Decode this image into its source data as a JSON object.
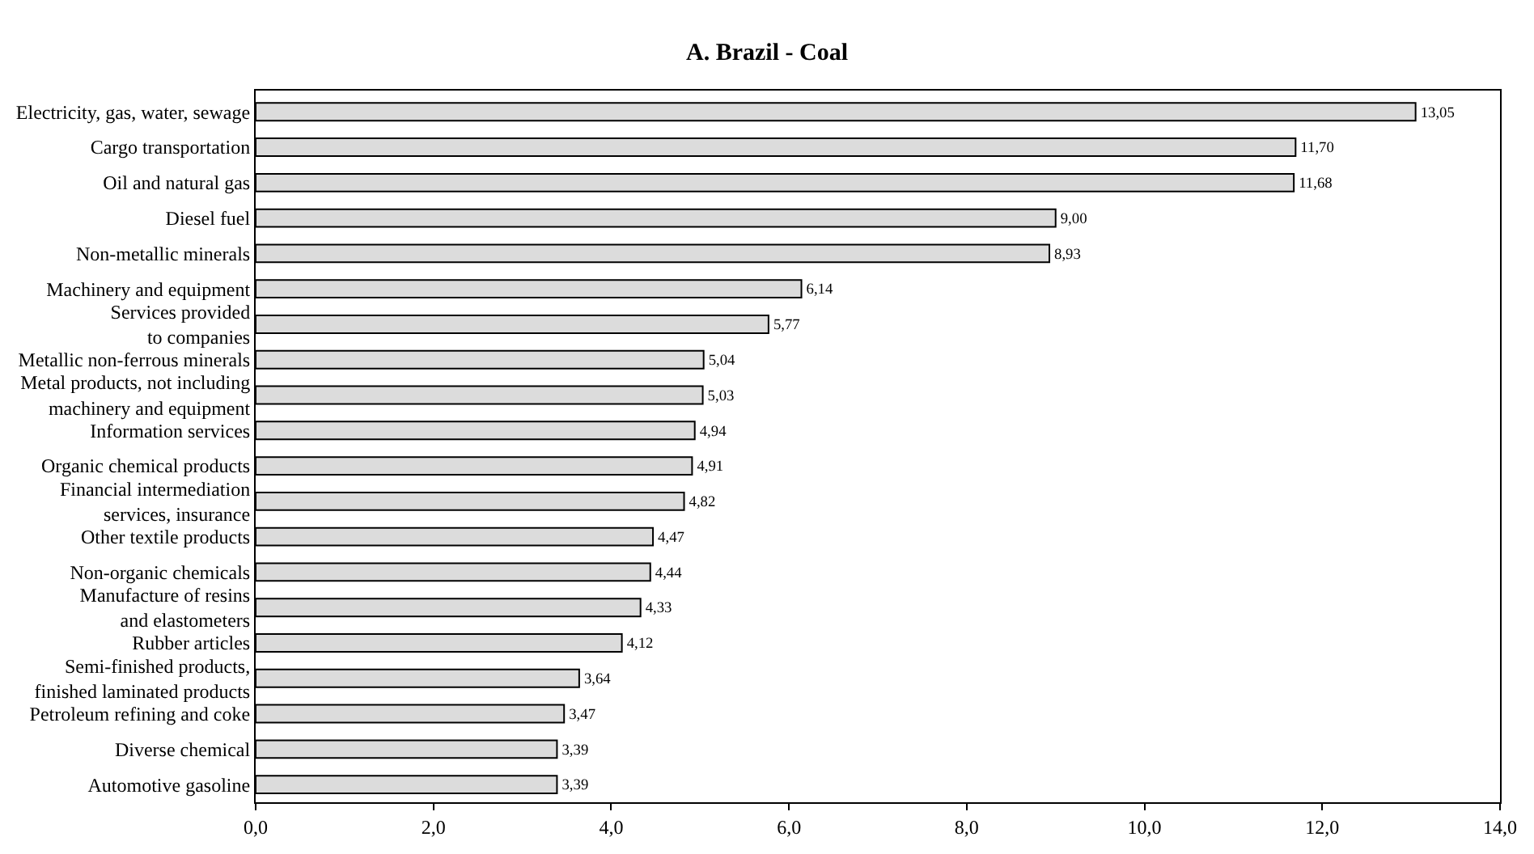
{
  "chart_data": {
    "type": "bar",
    "orientation": "horizontal",
    "title": "A. Brazil - Coal",
    "categories": [
      "Electricity, gas, water, sewage",
      "Cargo transportation",
      "Oil and natural gas",
      "Diesel fuel",
      "Non-metallic minerals",
      "Machinery and equipment",
      "Services provided\nto companies",
      "Metallic non-ferrous minerals",
      "Metal products, not including\nmachinery and equipment",
      "Information services",
      "Organic chemical products",
      "Financial intermediation\nservices, insurance",
      "Other textile products",
      "Non-organic chemicals",
      "Manufacture of resins\nand elastometers",
      "Rubber articles",
      "Semi-finished products,\nfinished laminated products",
      "Petroleum refining and coke",
      "Diverse chemical",
      "Automotive gasoline"
    ],
    "values": [
      13.05,
      11.7,
      11.68,
      9.0,
      8.93,
      6.14,
      5.77,
      5.04,
      5.03,
      4.94,
      4.91,
      4.82,
      4.47,
      4.44,
      4.33,
      4.12,
      3.64,
      3.47,
      3.39,
      3.39
    ],
    "value_labels": [
      "13,05",
      "11,70",
      "11,68",
      "9,00",
      "8,93",
      "6,14",
      "5,77",
      "5,04",
      "5,03",
      "4,94",
      "4,91",
      "4,82",
      "4,47",
      "4,44",
      "4,33",
      "4,12",
      "3,64",
      "3,47",
      "3,39",
      "3,39"
    ],
    "color": "#dcdcdc",
    "xlim": [
      0,
      14
    ],
    "xticks": [
      {
        "value": 0,
        "label": "0,0"
      },
      {
        "value": 2,
        "label": "2,0"
      },
      {
        "value": 4,
        "label": "4,0"
      },
      {
        "value": 6,
        "label": "6,0"
      },
      {
        "value": 8,
        "label": "8,0"
      },
      {
        "value": 10,
        "label": "10,0"
      },
      {
        "value": 12,
        "label": "12,0"
      },
      {
        "value": 14,
        "label": "14,0"
      }
    ],
    "legend": false
  }
}
